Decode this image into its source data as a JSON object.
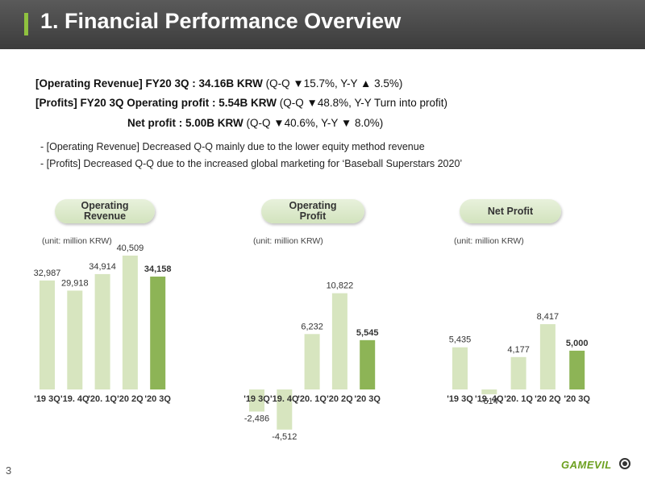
{
  "header": {
    "title": "1. Financial Performance Overview"
  },
  "summary": {
    "line1": {
      "bold": "[Operating Revenue] FY20 3Q : 34.16B KRW",
      "rest": " (Q-Q ▼15.7%, Y-Y ▲ 3.5%)"
    },
    "line2": {
      "bold": "[Profits] FY20 3Q Operating profit : 5.54B KRW",
      "rest": " (Q-Q ▼48.8%, Y-Y Turn into profit)"
    },
    "line3": {
      "bold": "Net profit : 5.00B KRW",
      "rest": " (Q-Q ▼40.6%, Y-Y ▼ 8.0%)"
    }
  },
  "notes": [
    "- [Operating Revenue] Decreased Q-Q mainly due to the lower equity method revenue",
    "- [Profits] Decreased Q-Q due to the increased global marketing for ‘Baseball Superstars 2020’"
  ],
  "colors": {
    "bar_light": "#d7e5bf",
    "bar_highlight": "#8db456",
    "header_accent": "#8fc23f"
  },
  "chart_data": [
    {
      "type": "bar",
      "title": "Operating\nRevenue",
      "unit": "(unit: million KRW)",
      "categories": [
        "'19 3Q",
        "'19. 4Q",
        "'20. 1Q",
        "'20 2Q",
        "'20 3Q"
      ],
      "values": [
        32987,
        29918,
        34914,
        40509,
        34158
      ],
      "labels": [
        "32,987",
        "29,918",
        "34,914",
        "40,509",
        "34,158"
      ],
      "highlight_index": 4
    },
    {
      "type": "bar",
      "title": "Operating\nProfit",
      "unit": "(unit: million KRW)",
      "categories": [
        "'19 3Q",
        "'19. 4Q",
        "'20. 1Q",
        "'20 2Q",
        "'20 3Q"
      ],
      "values": [
        -2486,
        -4512,
        6232,
        10822,
        5545
      ],
      "labels": [
        "-2,486",
        "-4,512",
        "6,232",
        "10,822",
        "5,545"
      ],
      "highlight_index": 4
    },
    {
      "type": "bar",
      "title": "Net Profit",
      "unit": "(unit: million KRW)",
      "categories": [
        "'19 3Q",
        "'19. 4Q",
        "'20. 1Q",
        "'20 2Q",
        "'20 3Q"
      ],
      "values": [
        5435,
        -614,
        4177,
        8417,
        5000
      ],
      "labels": [
        "5,435",
        "-614",
        "4,177",
        "8,417",
        "5,000"
      ],
      "highlight_index": 4
    }
  ],
  "footer": {
    "page_number": "3",
    "logo_text": "GAMEVIL"
  }
}
